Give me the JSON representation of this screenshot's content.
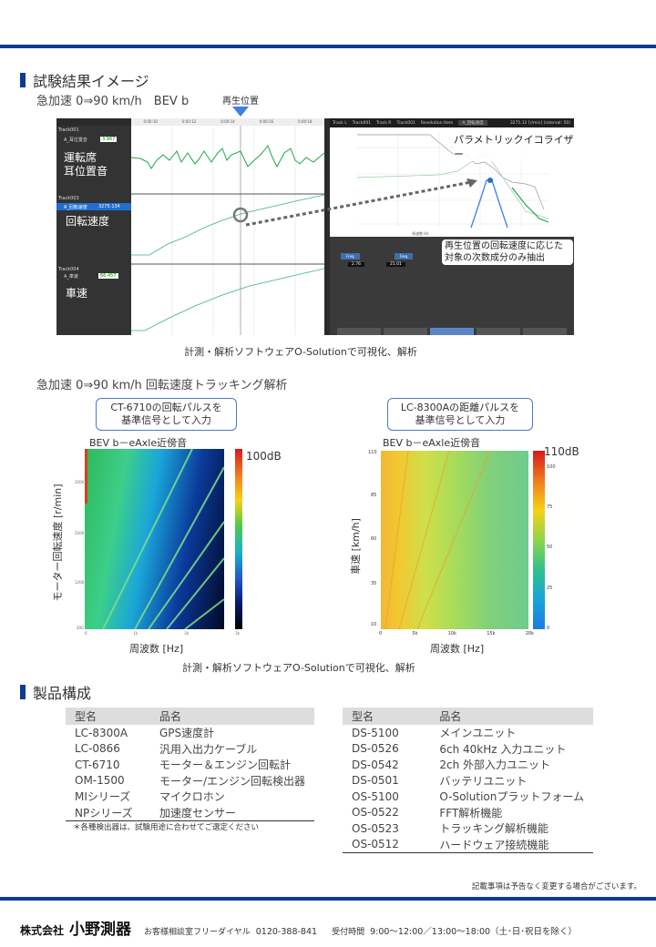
{
  "section1": {
    "title": "試験結果イメージ",
    "subtitle": "急加速 0⇒90 km/h　BEV b",
    "playhead_label": "再生位置"
  },
  "software": {
    "left_labels": [
      "運転席\n耳位置音",
      "回転速度",
      "車速"
    ],
    "tracks": [
      {
        "name": "Track001",
        "channel": "A_耳位置音",
        "value": "3.967",
        "unit": "Pa"
      },
      {
        "name": "Track003",
        "channel": "A_回転速度",
        "value": "3275.134",
        "unit": "r/min"
      },
      {
        "name": "Track004",
        "channel": "A_車速",
        "value": "66.457",
        "unit": "km/h"
      }
    ],
    "time_ticks": [
      "0:00:10",
      "0:00:12",
      "0:00:14",
      "0:00:16",
      "0:00:18"
    ],
    "eq_title": "パラメトリックイコライザー",
    "eq_note": "再生位置の回転速度に応じた\n対象の次数成分のみ抽出",
    "eq_header": {
      "track_l": "Track001",
      "track_r": "Track001",
      "revolution_label": "Revolution Item",
      "revolution": "A_回転速度",
      "readout": "3275.12 [r/min] (interval: 50)"
    },
    "eq_y_ticks": [
      "100",
      "50",
      "0",
      "-50",
      "-100"
    ],
    "eq_x_ticks": [
      "1",
      "10",
      "100",
      "1k",
      "10k",
      "20k"
    ],
    "eq_x_label": "周波数 Hz",
    "bands": [
      {
        "mode": "Freq",
        "value": "2.76",
        "q": "1.00",
        "harmonic": "1",
        "gain": "0.00"
      },
      {
        "mode": "Freq",
        "value": "21.01",
        "q": "1.00",
        "harmonic": "1",
        "gain": "0.00"
      },
      {
        "mode": "Order",
        "value": "",
        "pole": "6",
        "lnoct": "1.0",
        "gain": ""
      },
      {
        "mode": "Freq",
        "value": "",
        "q": "1.00",
        "harmonic": "1",
        "gain": "0.00"
      },
      {
        "mode": "Freq",
        "value": "",
        "q": "1.00",
        "harmonic": "1",
        "gain": "0.00"
      }
    ]
  },
  "caption1": "計測・解析ソフトウェアO-Solutionで可視化、解析",
  "section2": {
    "subtitle": "急加速 0⇒90 km/h 回転速度トラッキング解析",
    "left": {
      "callout": "CT-6710の回転パルスを\n基準信号として入力",
      "title": "BEV b－eAxle近傍音",
      "ylabel": "モーター回転速度 [r/min]",
      "xlabel": "周波数 [Hz]",
      "scale_max": "100dB",
      "y_ticks": [
        "3200",
        "2200",
        "1200",
        "200"
      ],
      "x_ticks": [
        "0",
        "1k",
        "2k",
        "3k"
      ]
    },
    "right": {
      "callout": "LC-8300Aの距離パルスを\n基準信号として入力",
      "title": "BEV b－eAxle近傍音",
      "ylabel": "車速 [km/h]",
      "xlabel": "周波数 [Hz]",
      "scale_max": "110dB",
      "scale_ticks": [
        "100",
        "75",
        "50",
        "25",
        "0"
      ],
      "y_ticks": [
        "110",
        "85",
        "60",
        "35",
        "10"
      ],
      "x_ticks": [
        "0",
        "5k",
        "10k",
        "15k",
        "20k"
      ]
    }
  },
  "caption2": "計測・解析ソフトウェアO-Solutionで可視化、解析",
  "section3": {
    "title": "製品構成",
    "headers": [
      "型名",
      "品名"
    ],
    "left_rows": [
      [
        "LC-8300A",
        "GPS速度計"
      ],
      [
        "LC-0866",
        "汎用入出力ケーブル"
      ],
      [
        "CT-6710",
        "モーター＆エンジン回転計"
      ],
      [
        "OM-1500",
        "モーター/エンジン回転検出器"
      ],
      [
        "MIシリーズ",
        "マイクロホン"
      ],
      [
        "NPシリーズ",
        "加速度センサー"
      ]
    ],
    "note": "＊各種検出器は、試験用途に合わせてご選定ください",
    "right_rows": [
      [
        "DS-5100",
        "メインユニット"
      ],
      [
        "DS-0526",
        "6ch 40kHz 入力ユニット"
      ],
      [
        "DS-0542",
        "2ch 外部入力ユニット"
      ],
      [
        "DS-0501",
        "バッテリユニット"
      ],
      [
        "OS-5100",
        "O-Solutionプラットフォーム"
      ],
      [
        "OS-0522",
        "FFT解析機能"
      ],
      [
        "OS-0523",
        "トラッキング解析機能"
      ],
      [
        "OS-0512",
        "ハードウェア接続機能"
      ]
    ]
  },
  "disclaimer": "記載事項は予告なく変更する場合がございます。",
  "footer": {
    "company_prefix": "株式会社",
    "company": "小野測器",
    "hotline_label": "お客様相談室フリーダイヤル",
    "phone": "0120-388-841",
    "hours_label": "受付時間",
    "hours": "9:00～12:00／13:00～18:00（土･日･祝日を除く）"
  },
  "colors": {
    "brand": "#0a3d91",
    "accent": "#3b82e0"
  }
}
